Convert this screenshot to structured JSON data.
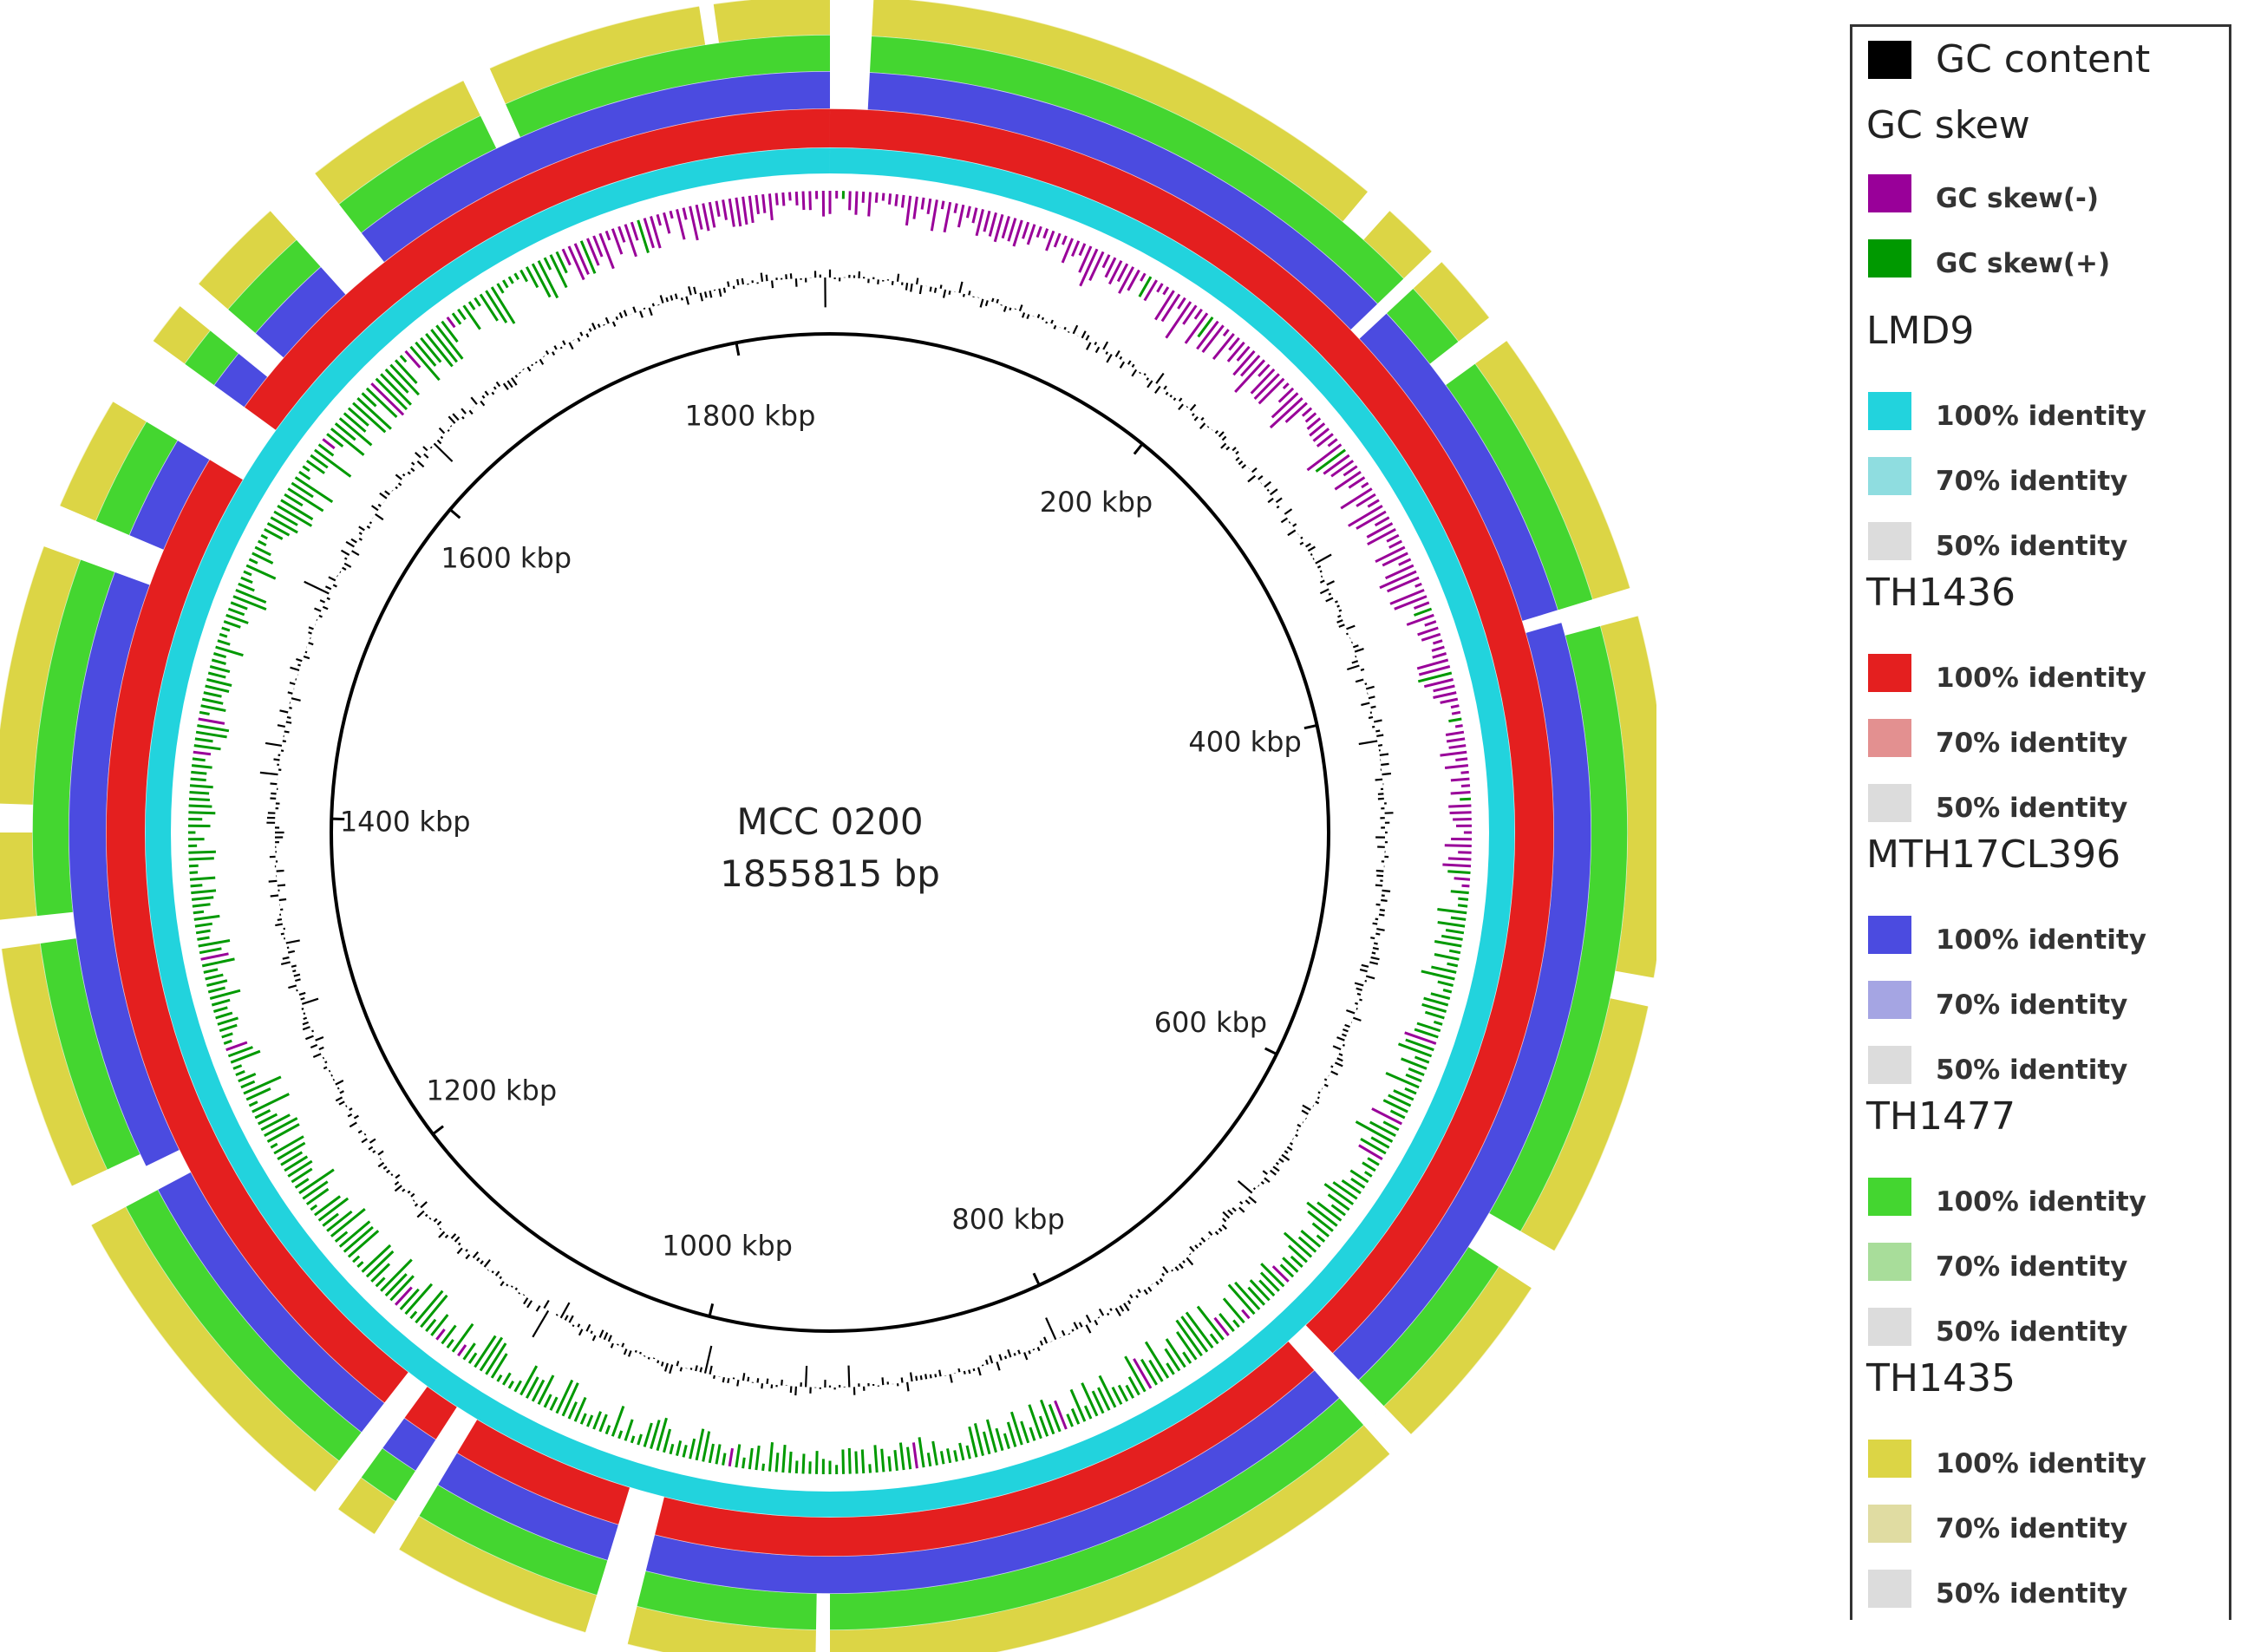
{
  "genome": {
    "name": "MCC 0200",
    "length_label": "1855815 bp",
    "length_bp": 1855815
  },
  "tick_labels": [
    "200 kbp",
    "400 kbp",
    "600 kbp",
    "800 kbp",
    "1000 kbp",
    "1200 kbp",
    "1400 kbp",
    "1600 kbp",
    "1800 kbp"
  ],
  "colors": {
    "gc_content": "#000000",
    "gc_skew_minus": "#990099",
    "gc_skew_plus": "#009900",
    "lmd9": "#22d3dd",
    "th1436": "#e41f1f",
    "mth17cl396": "#4b4be0",
    "th1477": "#44d630",
    "th1435": "#dcd545",
    "gap": "#ffffff"
  },
  "legend": {
    "gc_content": {
      "label": "GC content",
      "color": "#000000"
    },
    "gc_skew": {
      "title": "GC skew",
      "items": [
        {
          "label": "GC skew(-)",
          "color": "#990099"
        },
        {
          "label": "GC skew(+)",
          "color": "#009900"
        }
      ]
    },
    "rings": [
      {
        "title": "LMD9",
        "items": [
          {
            "label": "100% identity",
            "color": "#22d3dd"
          },
          {
            "label": "70% identity",
            "color": "#8fdde0"
          },
          {
            "label": "50% identity",
            "color": "#dcdcdc"
          }
        ]
      },
      {
        "title": "TH1436",
        "items": [
          {
            "label": "100% identity",
            "color": "#e41f1f"
          },
          {
            "label": "70% identity",
            "color": "#e39090"
          },
          {
            "label": "50% identity",
            "color": "#dcdcdc"
          }
        ]
      },
      {
        "title": "MTH17CL396",
        "items": [
          {
            "label": "100% identity",
            "color": "#4b4be0"
          },
          {
            "label": "70% identity",
            "color": "#a5a5e3"
          },
          {
            "label": "50% identity",
            "color": "#dcdcdc"
          }
        ]
      },
      {
        "title": "TH1477",
        "items": [
          {
            "label": "100% identity",
            "color": "#44d630"
          },
          {
            "label": "70% identity",
            "color": "#a8dd9a"
          },
          {
            "label": "50% identity",
            "color": "#dcdcdc"
          }
        ]
      },
      {
        "title": "TH1435",
        "items": [
          {
            "label": "100% identity",
            "color": "#dcd545"
          },
          {
            "label": "70% identity",
            "color": "#e0dca2"
          },
          {
            "label": "50% identity",
            "color": "#dcdcdc"
          }
        ]
      }
    ]
  }
}
